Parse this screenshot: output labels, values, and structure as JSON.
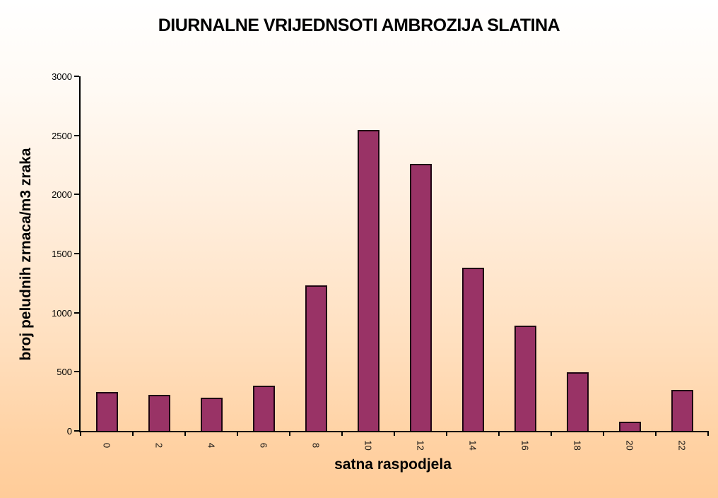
{
  "chart_data": {
    "type": "bar",
    "title": "DIURNALNE VRIJEDNSOTI AMBROZIJA SLATINA",
    "xlabel": "satna raspodjela",
    "ylabel": "broj peludnih zrnaca/m3 zraka",
    "categories": [
      "0",
      "2",
      "4",
      "6",
      "8",
      "10",
      "12",
      "14",
      "16",
      "18",
      "20",
      "22"
    ],
    "values": [
      330,
      305,
      280,
      380,
      1230,
      2545,
      2260,
      1380,
      890,
      495,
      80,
      345
    ],
    "ylim": [
      0,
      3000
    ],
    "yticks": [
      0,
      500,
      1000,
      1500,
      2000,
      2500,
      3000
    ],
    "grid": false,
    "legend": "none",
    "colors": {
      "bar_fill": "#993366",
      "bar_border": "#1f0512",
      "axis": "#000000",
      "background_top": "#ffffff",
      "background_bottom": "#ffcc99"
    }
  }
}
